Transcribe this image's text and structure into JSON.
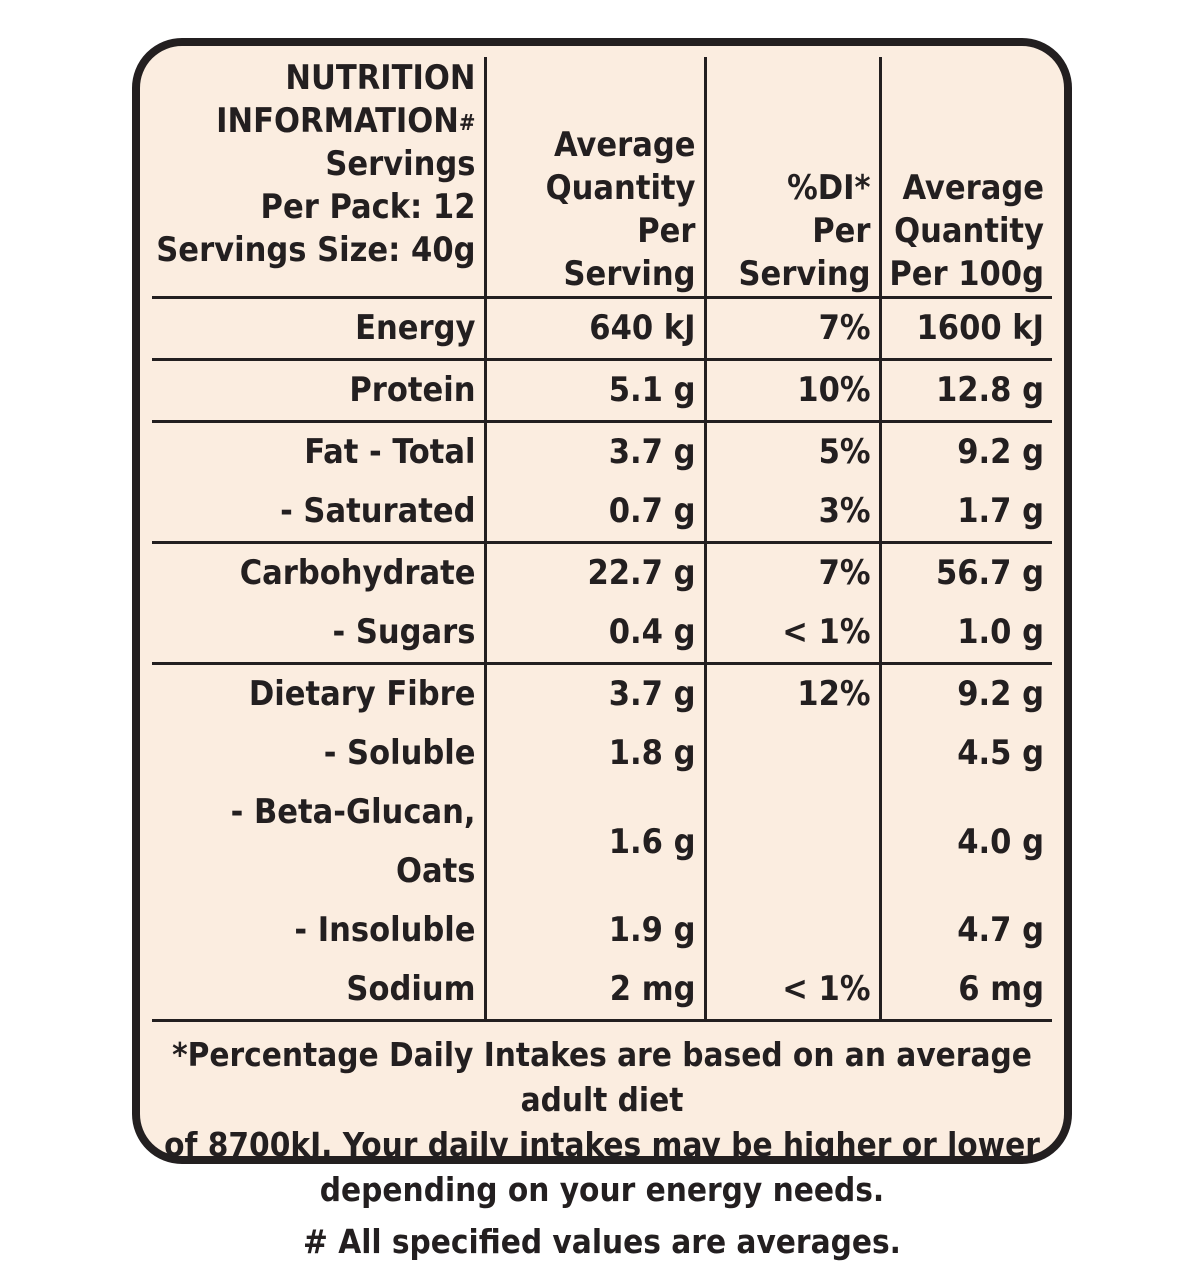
{
  "header": {
    "col1": {
      "line1": "NUTRITION",
      "line2": "INFORMATION",
      "line2_mark": "#",
      "line3": "Servings",
      "line4": "Per Pack: 12",
      "line5": "Servings Size: 40g"
    },
    "col2": [
      "Average",
      "Quantity",
      "Per",
      "Serving"
    ],
    "col3": [
      "%DI*",
      "Per",
      "Serving"
    ],
    "col4": [
      "Average",
      "Quantity",
      "Per 100g"
    ]
  },
  "groups": [
    [
      {
        "name": "Energy",
        "per_serving": "640 kJ",
        "di": "7%",
        "per_100g": "1600 kJ"
      }
    ],
    [
      {
        "name": "Protein",
        "per_serving": "5.1 g",
        "di": "10%",
        "per_100g": "12.8 g"
      }
    ],
    [
      {
        "name": "Fat - Total",
        "per_serving": "3.7 g",
        "di": "5%",
        "per_100g": "9.2 g"
      },
      {
        "name": "- Saturated",
        "per_serving": "0.7 g",
        "di": "3%",
        "per_100g": "1.7 g"
      }
    ],
    [
      {
        "name": "Carbohydrate",
        "per_serving": "22.7 g",
        "di": "7%",
        "per_100g": "56.7 g"
      },
      {
        "name": "- Sugars",
        "per_serving": "0.4 g",
        "di": "< 1%",
        "per_100g": "1.0 g"
      }
    ],
    [
      {
        "name": "Dietary Fibre",
        "per_serving": "3.7 g",
        "di": "12%",
        "per_100g": "9.2 g"
      },
      {
        "name": "- Soluble",
        "per_serving": "1.8 g",
        "di": "",
        "per_100g": "4.5 g"
      },
      {
        "name": "- Beta-Glucan, Oats",
        "per_serving": "1.6 g",
        "di": "",
        "per_100g": "4.0 g"
      },
      {
        "name": "- Insoluble",
        "per_serving": "1.9 g",
        "di": "",
        "per_100g": "4.7 g"
      },
      {
        "name": "Sodium",
        "per_serving": "2 mg",
        "di": "< 1%",
        "per_100g": "6 mg"
      }
    ]
  ],
  "footer": {
    "note_lines": [
      "*Percentage Daily Intakes are based on an average adult diet",
      "of 8700kJ. Your daily intakes may be higher or lower",
      "depending on your energy needs."
    ],
    "averages": "# All specified values are averages."
  }
}
